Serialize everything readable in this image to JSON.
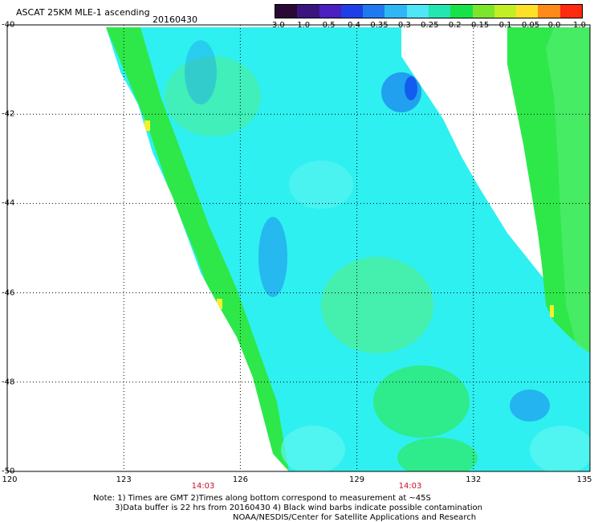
{
  "header": {
    "title": "ASCAT 25KM MLE-1 ascending",
    "date": "20160430"
  },
  "colorbar": {
    "labels": [
      "-3.0",
      "-1.0",
      "-0.5",
      "-0.4",
      "-0.35",
      "-0.3",
      "-0.25",
      "-0.2",
      "-0.15",
      "-0.1",
      "-0.05",
      "0.0",
      "1.0"
    ],
    "colors": [
      "#2a0a35",
      "#3a1580",
      "#4b1fc0",
      "#1f3fe6",
      "#1f7aef",
      "#2fb6f4",
      "#4fe6f6",
      "#23e6b0",
      "#18e24a",
      "#7de62b",
      "#c2ee26",
      "#ffe028",
      "#ff8a1a",
      "#ff2a10"
    ]
  },
  "map": {
    "lat_labels": [
      "-40",
      "-42",
      "-44",
      "-46",
      "-48",
      "-50"
    ],
    "lon_labels": [
      "120",
      "123",
      "126",
      "129",
      "132",
      "135"
    ],
    "pass_times": [
      "14:03",
      "14:03"
    ],
    "colors": {
      "land_none": "#ffffff",
      "cyan": "#2ff0f0",
      "cyan_light": "#5ef5f0",
      "green": "#2ee84a",
      "green_light": "#57ee77",
      "blue": "#1e8cf0",
      "deep_blue": "#1155ee",
      "yellow": "#f5f02a",
      "grid": "#000000"
    }
  },
  "notes": {
    "line1": "Note: 1) Times are GMT 2)Times along bottom correspond to measurement at ~45S",
    "line2": "3)Data buffer is 22 hrs from 20160430 4) Black wind barbs indicate possible contamination",
    "line3": "NOAA/NESDIS/Center for Satellite Applications and Research"
  }
}
